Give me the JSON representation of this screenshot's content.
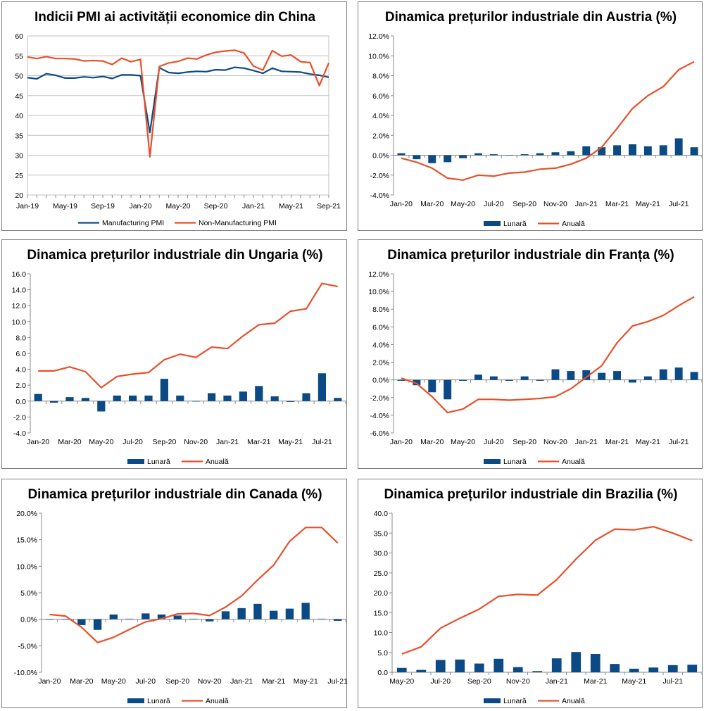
{
  "colors": {
    "blue": "#0b4a84",
    "orange": "#e8502b",
    "grid": "#c0c0c0",
    "axis": "#888888"
  },
  "chart_data": [
    {
      "id": "china",
      "type": "line",
      "title": "Indicii PMI ai activității economice din China",
      "ylim": [
        20,
        60
      ],
      "yticks": [
        "20",
        "25",
        "30",
        "35",
        "40",
        "45",
        "50",
        "55",
        "60"
      ],
      "yticks_values": [
        20,
        25,
        30,
        35,
        40,
        45,
        50,
        55,
        60
      ],
      "grid": true,
      "xlabels": [
        "Jan-19",
        "May-19",
        "Sep-19",
        "Jan-20",
        "May-20",
        "Sep-20",
        "Jan-21",
        "May-21",
        "Sep-21"
      ],
      "xlabel_positions": [
        0,
        4,
        8,
        12,
        16,
        20,
        24,
        28,
        32
      ],
      "npoints": 33,
      "series": [
        {
          "name": "Manufacturing PMI",
          "kind": "line",
          "color": "#0b4a84",
          "values": [
            49.5,
            49.2,
            50.5,
            50.1,
            49.4,
            49.4,
            49.7,
            49.5,
            49.8,
            49.3,
            50.2,
            50.2,
            50.0,
            35.7,
            52.0,
            50.8,
            50.6,
            50.9,
            51.1,
            51.0,
            51.5,
            51.4,
            52.1,
            51.9,
            51.3,
            50.6,
            51.9,
            51.1,
            51.0,
            50.9,
            50.4,
            50.1,
            49.6
          ]
        },
        {
          "name": "Non-Manufacturing PMI",
          "kind": "line",
          "color": "#e8502b",
          "values": [
            54.7,
            54.3,
            54.8,
            54.3,
            54.3,
            54.2,
            53.7,
            53.8,
            53.7,
            52.8,
            54.4,
            53.5,
            54.1,
            29.6,
            52.3,
            53.2,
            53.6,
            54.4,
            54.2,
            55.2,
            55.9,
            56.2,
            56.4,
            55.7,
            52.4,
            51.4,
            56.3,
            54.9,
            55.2,
            53.5,
            53.3,
            47.5,
            53.2
          ]
        }
      ],
      "legend": [
        "Manufacturing PMI",
        "Non-Manufacturing PMI"
      ]
    },
    {
      "id": "austria",
      "type": "bar+line",
      "title": "Dinamica prețurilor industriale din Austria (%)",
      "ylim": [
        -4,
        12
      ],
      "yticks": [
        "-4.0%",
        "-2.0%",
        "0.0%",
        "2.0%",
        "4.0%",
        "6.0%",
        "8.0%",
        "10.0%",
        "12.0%"
      ],
      "yticks_values": [
        -4,
        -2,
        0,
        2,
        4,
        6,
        8,
        10,
        12
      ],
      "grid": false,
      "xlabels": [
        "Jan-20",
        "Mar-20",
        "May-20",
        "Jul-20",
        "Sep-20",
        "Nov-20",
        "Jan-21",
        "Mar-21",
        "May-21",
        "Jul-21"
      ],
      "xlabel_positions": [
        0,
        2,
        4,
        6,
        8,
        10,
        12,
        14,
        16,
        18
      ],
      "npoints": 20,
      "series": [
        {
          "name": "Lunară",
          "kind": "bar",
          "color": "#0b4a84",
          "values": [
            0.2,
            -0.4,
            -0.8,
            -0.7,
            -0.3,
            0.2,
            0.1,
            0.0,
            0.1,
            0.2,
            0.3,
            0.4,
            0.9,
            0.8,
            1.0,
            1.1,
            0.9,
            1.0,
            1.7,
            0.8
          ]
        },
        {
          "name": "Anuală",
          "kind": "line",
          "color": "#e8502b",
          "values": [
            -0.3,
            -0.7,
            -1.3,
            -2.3,
            -2.5,
            -2.0,
            -2.1,
            -1.8,
            -1.7,
            -1.4,
            -1.3,
            -0.9,
            -0.3,
            0.8,
            2.7,
            4.7,
            6.0,
            6.9,
            8.6,
            9.4
          ]
        }
      ],
      "legend": [
        "Lunară",
        "Anuală"
      ]
    },
    {
      "id": "ungaria",
      "type": "bar+line",
      "title": "Dinamica prețurilor industriale din Ungaria (%)",
      "ylim": [
        -4,
        16
      ],
      "yticks": [
        "-4.0",
        "-2.0",
        "0.0",
        "2.0",
        "4.0",
        "6.0",
        "8.0",
        "10.0",
        "12.0",
        "14.0",
        "16.0"
      ],
      "yticks_values": [
        -4,
        -2,
        0,
        2,
        4,
        6,
        8,
        10,
        12,
        14,
        16
      ],
      "grid": false,
      "xlabels": [
        "Jan-20",
        "Mar-20",
        "May-20",
        "Jul-20",
        "Sep-20",
        "Nov-20",
        "Jan-21",
        "Mar-21",
        "May-21",
        "Jul-21"
      ],
      "xlabel_positions": [
        0,
        2,
        4,
        6,
        8,
        10,
        12,
        14,
        16,
        18
      ],
      "npoints": 20,
      "series": [
        {
          "name": "Lunară",
          "kind": "bar",
          "color": "#0b4a84",
          "values": [
            0.9,
            -0.2,
            0.5,
            0.4,
            -1.3,
            0.7,
            0.7,
            0.7,
            2.8,
            0.7,
            0.0,
            1.0,
            0.7,
            1.2,
            1.9,
            0.6,
            -0.1,
            1.0,
            3.5,
            0.4
          ]
        },
        {
          "name": "Anuală",
          "kind": "line",
          "color": "#e8502b",
          "values": [
            3.8,
            3.8,
            4.3,
            3.7,
            1.7,
            3.1,
            3.4,
            3.6,
            5.2,
            5.9,
            5.5,
            6.8,
            6.6,
            8.2,
            9.6,
            9.8,
            11.3,
            11.6,
            14.8,
            14.4
          ]
        }
      ],
      "legend": [
        "Lunară",
        "Anuală"
      ]
    },
    {
      "id": "franta",
      "type": "bar+line",
      "title": "Dinamica prețurilor industriale din Franța (%)",
      "ylim": [
        -6,
        12
      ],
      "yticks": [
        "-6.0%",
        "-4.0%",
        "-2.0%",
        "0.0%",
        "2.0%",
        "4.0%",
        "6.0%",
        "8.0%",
        "10.0%",
        "12.0%"
      ],
      "yticks_values": [
        -6,
        -4,
        -2,
        0,
        2,
        4,
        6,
        8,
        10,
        12
      ],
      "grid": false,
      "xlabels": [
        "Jan-20",
        "Mar-20",
        "May-20",
        "Jul-20",
        "Sep-20",
        "Nov-20",
        "Jan-21",
        "Mar-21",
        "May-21",
        "Jul-21"
      ],
      "xlabel_positions": [
        0,
        2,
        4,
        6,
        8,
        10,
        12,
        14,
        16,
        18
      ],
      "npoints": 20,
      "series": [
        {
          "name": "Lunară",
          "kind": "bar",
          "color": "#0b4a84",
          "values": [
            -0.1,
            -0.6,
            -1.4,
            -2.2,
            -0.1,
            0.6,
            0.4,
            -0.1,
            0.4,
            -0.1,
            1.2,
            1.0,
            1.1,
            0.8,
            1.0,
            -0.3,
            0.4,
            1.2,
            1.4,
            0.9
          ]
        },
        {
          "name": "Anuală",
          "kind": "line",
          "color": "#e8502b",
          "values": [
            0.2,
            -0.4,
            -1.9,
            -3.7,
            -3.3,
            -2.2,
            -2.2,
            -2.3,
            -2.2,
            -2.1,
            -1.9,
            -1.0,
            0.3,
            1.6,
            4.2,
            6.1,
            6.6,
            7.3,
            8.4,
            9.4
          ]
        }
      ],
      "legend": [
        "Lunară",
        "Anuală"
      ]
    },
    {
      "id": "canada",
      "type": "bar+line",
      "title": "Dinamica prețurilor industriale din Canada (%)",
      "ylim": [
        -10,
        20
      ],
      "yticks": [
        "-10.0%",
        "-5.0%",
        "0.0%",
        "5.0%",
        "10.0%",
        "15.0%",
        "20.0%"
      ],
      "yticks_values": [
        -10,
        -5,
        0,
        5,
        10,
        15,
        20
      ],
      "grid": false,
      "xlabels": [
        "Jan-20",
        "Mar-20",
        "May-20",
        "Jul-20",
        "Sep-20",
        "Nov-20",
        "Jan-21",
        "Mar-21",
        "May-21",
        "Jul-21"
      ],
      "xlabel_positions": [
        0,
        2,
        4,
        6,
        8,
        10,
        12,
        14,
        16,
        18
      ],
      "npoints": 19,
      "series": [
        {
          "name": "Lunară",
          "kind": "bar",
          "color": "#0b4a84",
          "values": [
            0.0,
            0.0,
            -1.1,
            -2.0,
            0.9,
            0.1,
            1.1,
            0.9,
            0.7,
            0.1,
            -0.4,
            1.5,
            2.1,
            2.9,
            1.6,
            2.0,
            3.1,
            0.1,
            -0.3
          ]
        },
        {
          "name": "Anuală",
          "kind": "line",
          "color": "#e8502b",
          "values": [
            0.9,
            0.6,
            -1.5,
            -4.4,
            -3.4,
            -1.9,
            -0.5,
            0.1,
            1.0,
            1.1,
            0.7,
            2.3,
            4.4,
            7.4,
            10.2,
            14.7,
            17.3,
            17.3,
            14.4
          ]
        }
      ],
      "legend": [
        "Lunară",
        "Anuală"
      ]
    },
    {
      "id": "brazilia",
      "type": "bar+line",
      "title": "Dinamica prețurilor industriale din Brazilia (%)",
      "ylim": [
        0,
        40
      ],
      "yticks": [
        "0.0",
        "5.0",
        "10.0",
        "15.0",
        "20.0",
        "25.0",
        "30.0",
        "35.0",
        "40.0"
      ],
      "yticks_values": [
        0,
        5,
        10,
        15,
        20,
        25,
        30,
        35,
        40
      ],
      "grid": false,
      "xlabels": [
        "May-20",
        "Jul-20",
        "Sep-20",
        "Nov-20",
        "Jan-21",
        "Mar-21",
        "May-21",
        "Jul-21"
      ],
      "xlabel_positions": [
        0,
        2,
        4,
        6,
        8,
        10,
        12,
        14
      ],
      "npoints": 16,
      "series": [
        {
          "name": "Lunară",
          "kind": "bar",
          "color": "#0b4a84",
          "values": [
            1.1,
            0.6,
            3.1,
            3.2,
            2.2,
            3.4,
            1.3,
            0.3,
            3.5,
            5.1,
            4.6,
            2.1,
            0.9,
            1.2,
            1.8,
            1.9
          ]
        },
        {
          "name": "Anuală",
          "kind": "line",
          "color": "#e8502b",
          "values": [
            4.6,
            6.4,
            11.1,
            13.6,
            15.9,
            19.1,
            19.6,
            19.4,
            23.3,
            28.5,
            33.2,
            36.0,
            35.8,
            36.6,
            35.0,
            33.1
          ]
        }
      ],
      "legend": [
        "Lunară",
        "Anuală"
      ]
    }
  ]
}
